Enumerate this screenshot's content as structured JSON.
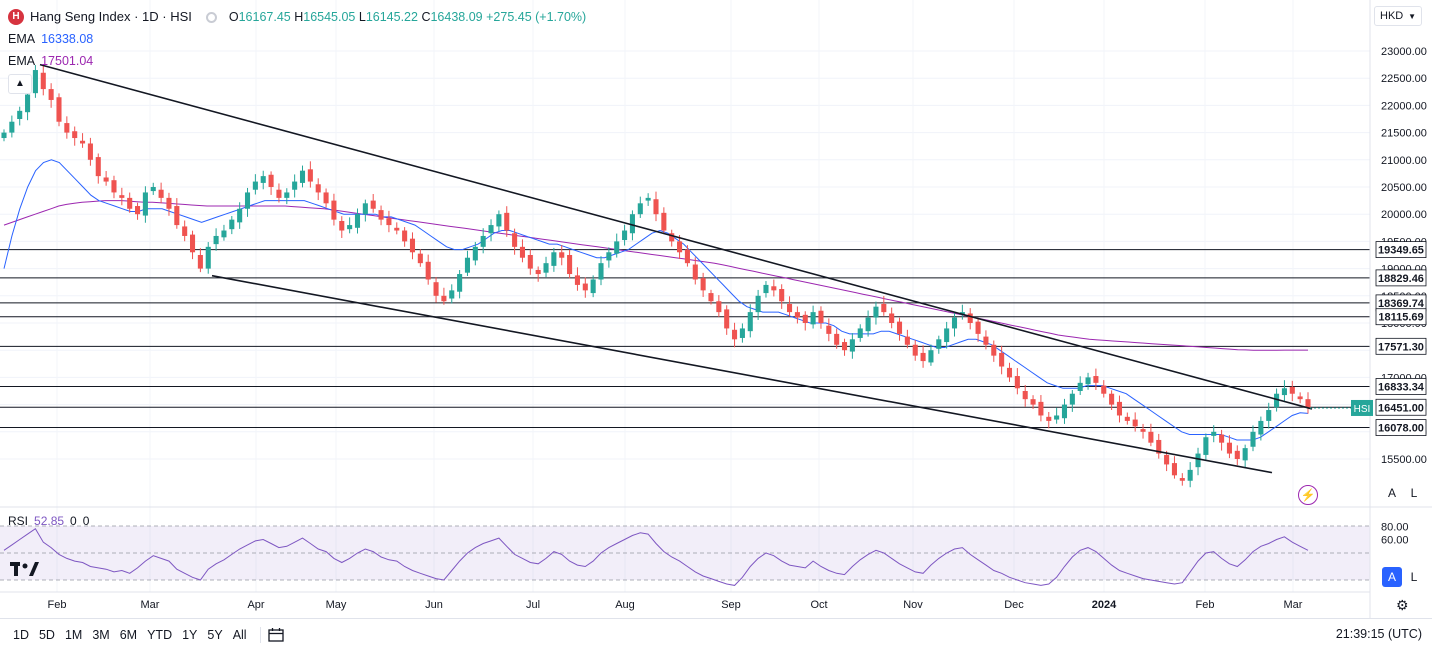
{
  "symbol": {
    "icon_letter": "H",
    "title": "Hang Seng Index · 1D · HSI",
    "open_label": "O",
    "open": "16167.45",
    "high_label": "H",
    "high": "16545.05",
    "low_label": "L",
    "low": "16145.22",
    "close_label": "C",
    "close": "16438.09",
    "change": "+275.45 (+1.70%)"
  },
  "indicators": [
    {
      "name": "EMA",
      "value": "16338.08",
      "color": "#2962ff"
    },
    {
      "name": "EMA",
      "value": "17501.04",
      "color": "#9c27b0"
    }
  ],
  "currency": "HKD",
  "axis_buttons": {
    "auto": "A",
    "log": "L"
  },
  "rsi": {
    "label": "RSI",
    "value": "52.85",
    "extra1": "0",
    "extra2": "0",
    "levels": [
      "80.00",
      "60.00"
    ]
  },
  "timeframes": [
    "1D",
    "5D",
    "1M",
    "3M",
    "6M",
    "YTD",
    "1Y",
    "5Y",
    "All"
  ],
  "clock": "21:39:15 (UTC)",
  "colors": {
    "up": "#26a69a",
    "down": "#ef5350",
    "ema_fast": "#2962ff",
    "ema_slow": "#9c27b0",
    "rsi": "#7e57c2",
    "accent": "#2962ff"
  },
  "chart_data": {
    "type": "candlestick",
    "title": "Hang Seng Index · 1D · HSI",
    "x_ticks": [
      "Feb",
      "Mar",
      "Apr",
      "May",
      "Jun",
      "Jul",
      "Aug",
      "Sep",
      "Oct",
      "Nov",
      "Dec",
      "2024",
      "Feb",
      "Mar"
    ],
    "y_ticks": [
      23000,
      22500,
      22000,
      21500,
      21000,
      20500,
      20000,
      19500,
      19000,
      18500,
      18000,
      17500,
      17000,
      16500,
      16000,
      15500
    ],
    "ylim": [
      14700,
      23400
    ],
    "horizontal_levels": [
      19349.65,
      18829.46,
      18369.74,
      18115.69,
      17571.3,
      16833.34,
      16451.0,
      16078.0
    ],
    "level_labels": [
      "19349.65",
      "18829.46",
      "18369.74",
      "18115.69",
      "17571.30",
      "16833.34",
      "16451.00",
      "16078.00"
    ],
    "last_price_tag": "HSI",
    "channel_lines": [
      {
        "from": [
          "Jan 27",
          22750
        ],
        "to": [
          "Mar 5",
          16420
        ]
      },
      {
        "from": [
          "Mar 20",
          18870
        ],
        "to": [
          "Feb 15",
          15250
        ]
      }
    ],
    "series": [
      {
        "name": "Price",
        "kind": "candles",
        "close": [
          21500,
          21700,
          21900,
          22200,
          22650,
          22300,
          22100,
          21700,
          21500,
          21400,
          21300,
          21000,
          20700,
          20600,
          20400,
          20300,
          20100,
          20000,
          20400,
          20500,
          20300,
          20100,
          19800,
          19600,
          19300,
          19000,
          19400,
          19600,
          19700,
          19900,
          20100,
          20400,
          20600,
          20700,
          20500,
          20300,
          20400,
          20600,
          20800,
          20600,
          20400,
          20200,
          19900,
          19700,
          19800,
          20000,
          20200,
          20100,
          19900,
          19800,
          19700,
          19500,
          19300,
          19100,
          18800,
          18500,
          18400,
          18600,
          18900,
          19200,
          19400,
          19600,
          19800,
          20000,
          19700,
          19400,
          19200,
          19000,
          18900,
          19100,
          19300,
          19200,
          18900,
          18700,
          18600,
          18800,
          19100,
          19300,
          19500,
          19700,
          20000,
          20200,
          20300,
          20000,
          19700,
          19500,
          19300,
          19100,
          18800,
          18600,
          18400,
          18200,
          17900,
          17700,
          17900,
          18200,
          18500,
          18700,
          18600,
          18400,
          18200,
          18100,
          18000,
          18200,
          18000,
          17800,
          17600,
          17500,
          17700,
          17900,
          18100,
          18300,
          18200,
          18000,
          17800,
          17600,
          17400,
          17300,
          17500,
          17700,
          17900,
          18100,
          18200,
          18000,
          17800,
          17600,
          17400,
          17200,
          17000,
          16800,
          16600,
          16500,
          16300,
          16200,
          16300,
          16500,
          16700,
          16900,
          17000,
          16900,
          16700,
          16500,
          16300,
          16200,
          16100,
          16000,
          15800,
          15600,
          15400,
          15200,
          15100,
          15300,
          15600,
          15900,
          16000,
          15800,
          15600,
          15500,
          15700,
          16000,
          16200,
          16400,
          16700,
          16800,
          16700,
          16600,
          16438
        ]
      },
      {
        "name": "EMA",
        "kind": "line",
        "color": "#2962ff",
        "values": [
          19000,
          19600,
          20100,
          20500,
          20800,
          20950,
          21000,
          20950,
          20800,
          20650,
          20500,
          20350,
          20250,
          20200,
          20150,
          20100,
          20050,
          20050,
          20100,
          20100,
          20100,
          20050,
          20000,
          19950,
          19900,
          19850,
          19900,
          19950,
          20000,
          20050,
          20100,
          20150,
          20200,
          20250,
          20250,
          20250,
          20250,
          20250,
          20250,
          20200,
          20150,
          20100,
          20050,
          20000,
          20000,
          20000,
          20000,
          20000,
          19950,
          19950,
          19900,
          19850,
          19800,
          19700,
          19600,
          19500,
          19400,
          19350,
          19350,
          19400,
          19450,
          19550,
          19650,
          19700,
          19700,
          19650,
          19600,
          19550,
          19500,
          19450,
          19450,
          19400,
          19350,
          19300,
          19250,
          19200,
          19200,
          19250,
          19300,
          19350,
          19450,
          19550,
          19650,
          19700,
          19650,
          19550,
          19450,
          19300,
          19150,
          19000,
          18850,
          18700,
          18550,
          18400,
          18300,
          18250,
          18200,
          18200,
          18200,
          18150,
          18100,
          18050,
          18000,
          18000,
          18000,
          17950,
          17850,
          17800,
          17800,
          17800,
          17800,
          17850,
          17850,
          17800,
          17750,
          17700,
          17650,
          17600,
          17550,
          17550,
          17600,
          17650,
          17700,
          17700,
          17650,
          17600,
          17500,
          17400,
          17300,
          17200,
          17100,
          17000,
          16900,
          16850,
          16800,
          16800,
          16800,
          16850,
          16850,
          16850,
          16800,
          16750,
          16700,
          16600,
          16500,
          16400,
          16300,
          16200,
          16100,
          16000,
          15950,
          15950,
          15950,
          15950,
          15950,
          15900,
          15850,
          15850,
          15850,
          15900,
          16000,
          16100,
          16200,
          16300,
          16350,
          16338
        ]
      },
      {
        "name": "EMA",
        "kind": "line",
        "color": "#9c27b0",
        "values": [
          19800,
          19850,
          19900,
          19950,
          20000,
          20050,
          20100,
          20150,
          20180,
          20200,
          20220,
          20230,
          20240,
          20250,
          20250,
          20250,
          20240,
          20230,
          20220,
          20220,
          20210,
          20200,
          20190,
          20180,
          20170,
          20160,
          20150,
          20150,
          20150,
          20150,
          20150,
          20150,
          20150,
          20150,
          20150,
          20150,
          20150,
          20140,
          20130,
          20120,
          20110,
          20100,
          20080,
          20060,
          20040,
          20020,
          20000,
          19980,
          19960,
          19940,
          19920,
          19900,
          19880,
          19860,
          19840,
          19820,
          19800,
          19780,
          19760,
          19740,
          19720,
          19700,
          19680,
          19660,
          19640,
          19620,
          19600,
          19580,
          19560,
          19540,
          19520,
          19500,
          19480,
          19460,
          19440,
          19420,
          19400,
          19380,
          19360,
          19340,
          19320,
          19300,
          19280,
          19260,
          19240,
          19220,
          19200,
          19180,
          19160,
          19140,
          19120,
          19100,
          19070,
          19040,
          19010,
          18980,
          18950,
          18920,
          18890,
          18860,
          18830,
          18800,
          18770,
          18740,
          18710,
          18680,
          18650,
          18620,
          18590,
          18560,
          18530,
          18500,
          18470,
          18440,
          18410,
          18380,
          18350,
          18320,
          18290,
          18260,
          18230,
          18200,
          18170,
          18140,
          18110,
          18080,
          18050,
          18020,
          17990,
          17960,
          17930,
          17900,
          17870,
          17840,
          17810,
          17780,
          17760,
          17740,
          17720,
          17700,
          17690,
          17680,
          17670,
          17660,
          17650,
          17640,
          17630,
          17620,
          17610,
          17600,
          17590,
          17580,
          17570,
          17560,
          17550,
          17540,
          17530,
          17520,
          17510,
          17505,
          17500,
          17500,
          17500,
          17500,
          17501,
          17501,
          17501,
          17501
        ]
      }
    ],
    "rsi_values": [
      52,
      56,
      60,
      64,
      68,
      58,
      54,
      49,
      46,
      44,
      43,
      40,
      39,
      38,
      36,
      37,
      35,
      39,
      44,
      48,
      46,
      44,
      38,
      35,
      32,
      30,
      38,
      42,
      45,
      49,
      53,
      56,
      59,
      60,
      57,
      54,
      55,
      58,
      61,
      57,
      53,
      51,
      46,
      43,
      46,
      50,
      53,
      51,
      47,
      45,
      44,
      40,
      37,
      35,
      33,
      31,
      30,
      37,
      44,
      50,
      54,
      57,
      59,
      61,
      55,
      49,
      46,
      43,
      42,
      46,
      51,
      49,
      44,
      41,
      40,
      44,
      50,
      54,
      57,
      60,
      63,
      65,
      64,
      57,
      51,
      47,
      44,
      40,
      36,
      33,
      31,
      29,
      27,
      26,
      32,
      40,
      46,
      50,
      48,
      44,
      41,
      40,
      39,
      44,
      40,
      37,
      35,
      34,
      40,
      45,
      49,
      52,
      50,
      46,
      42,
      39,
      36,
      35,
      41,
      46,
      50,
      53,
      54,
      49,
      45,
      41,
      37,
      35,
      32,
      30,
      28,
      27,
      26,
      27,
      32,
      40,
      47,
      52,
      54,
      51,
      46,
      41,
      37,
      35,
      33,
      31,
      30,
      29,
      28,
      27,
      28,
      36,
      44,
      50,
      51,
      46,
      42,
      40,
      45,
      51,
      55,
      57,
      60,
      62,
      58,
      55,
      52
    ]
  }
}
